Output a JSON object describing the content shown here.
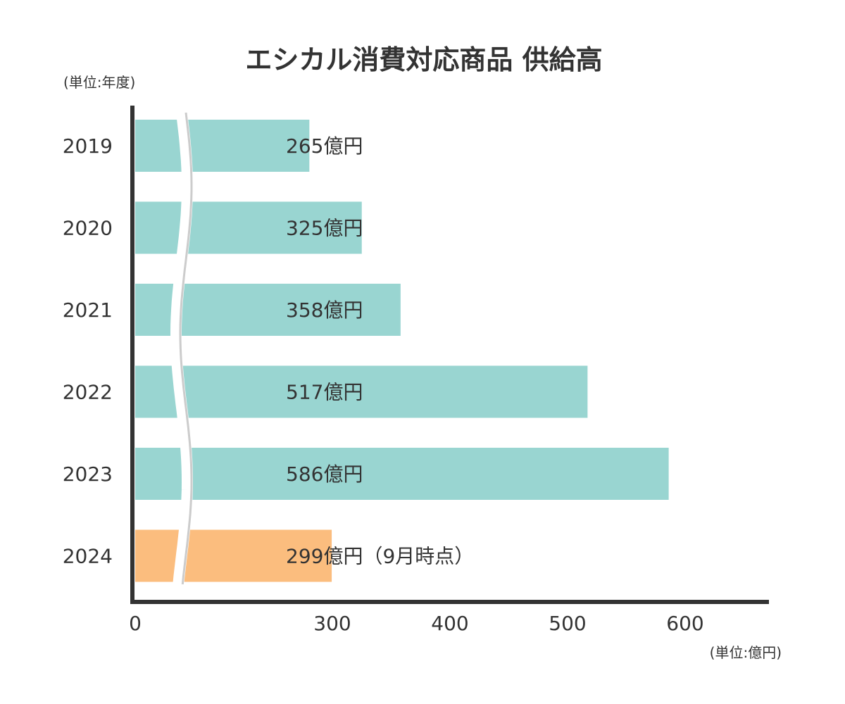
{
  "chart_data": {
    "type": "bar",
    "orientation": "horizontal",
    "title": "エシカル消費対応商品 供給高",
    "category_unit": "(単位:年度)",
    "value_unit": "(単位:億円)",
    "categories": [
      "2019",
      "2020",
      "2021",
      "2022",
      "2023",
      "2024"
    ],
    "values": [
      265,
      325,
      358,
      517,
      586,
      299
    ],
    "data_labels": [
      "265億円",
      "325億円",
      "358億円",
      "517億円",
      "586億円",
      "299億円（9月時点）"
    ],
    "bar_colors": [
      "#99d5d1",
      "#99d5d1",
      "#99d5d1",
      "#99d5d1",
      "#99d5d1",
      "#fbbd7e"
    ],
    "highlight_note": "2024 bar colored orange (partial year)",
    "x_ticks": [
      "0",
      "300",
      "400",
      "500",
      "600"
    ],
    "x_tick_values": [
      0,
      300,
      400,
      500,
      600
    ],
    "axis_break": "between 0 and 300",
    "xlim": [
      0,
      670
    ],
    "grid": false,
    "legend": "none"
  },
  "colors": {
    "bar_main": "#99d5d1",
    "bar_highlight": "#fbbd7e",
    "axis": "#333333",
    "text": "#333333",
    "break_line": "#cccccc"
  }
}
